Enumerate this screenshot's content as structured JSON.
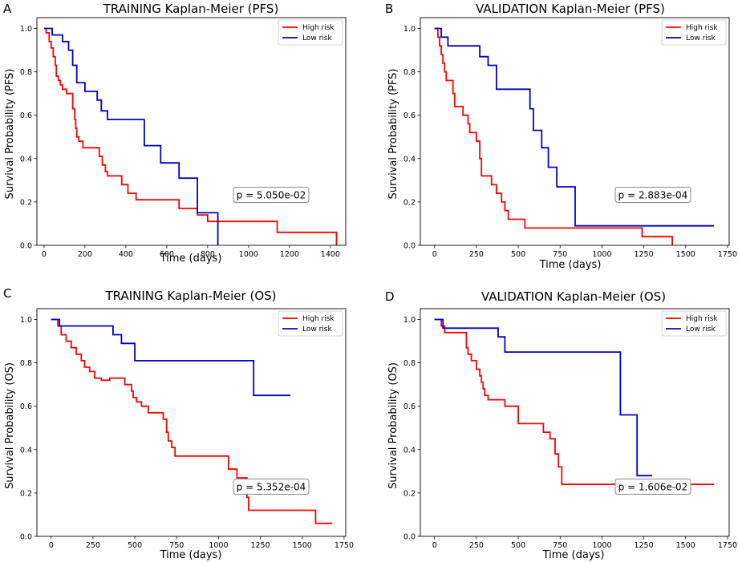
{
  "colors": {
    "high": "#ff0000",
    "low": "#0000cc"
  },
  "chart_data": [
    {
      "type": "line",
      "panel": "A",
      "title": "TRAINING Kaplan-Meier (PFS)",
      "xlabel": "Time (days)",
      "ylabel": "Survival Probability (PFS)",
      "xlim": [
        -35,
        1475
      ],
      "ylim": [
        0,
        1.05
      ],
      "xticks": [
        0,
        200,
        400,
        600,
        800,
        1000,
        1200,
        1400
      ],
      "yticks": [
        0.0,
        0.2,
        0.4,
        0.6,
        0.8,
        1.0
      ],
      "legend": {
        "position": "top-right",
        "entries": [
          "High risk",
          "Low risk"
        ]
      },
      "p_value_text": "p = 5.050e-02",
      "series": [
        {
          "name": "High risk",
          "color": "#ff0000",
          "x": [
            0,
            10,
            25,
            35,
            45,
            55,
            60,
            70,
            80,
            90,
            100,
            110,
            140,
            150,
            155,
            160,
            170,
            190,
            270,
            285,
            300,
            310,
            380,
            410,
            450,
            600,
            660,
            750,
            800,
            1140,
            1430
          ],
          "y": [
            1.0,
            0.98,
            0.94,
            0.91,
            0.87,
            0.83,
            0.78,
            0.76,
            0.74,
            0.72,
            0.72,
            0.7,
            0.63,
            0.58,
            0.54,
            0.5,
            0.48,
            0.45,
            0.41,
            0.37,
            0.34,
            0.32,
            0.28,
            0.24,
            0.21,
            0.21,
            0.17,
            0.14,
            0.11,
            0.06,
            0.0
          ]
        },
        {
          "name": "Low risk",
          "color": "#0000cc",
          "x": [
            0,
            40,
            90,
            120,
            140,
            160,
            200,
            260,
            280,
            310,
            490,
            570,
            660,
            750,
            850
          ],
          "y": [
            1.0,
            0.97,
            0.94,
            0.9,
            0.83,
            0.75,
            0.71,
            0.67,
            0.62,
            0.58,
            0.46,
            0.38,
            0.31,
            0.15,
            0.0
          ]
        }
      ]
    },
    {
      "type": "line",
      "panel": "B",
      "title": "VALIDATION Kaplan-Meier (PFS)",
      "xlabel": "Time (days)",
      "ylabel": "Survival Probability (PFS)",
      "xlim": [
        -85,
        1760
      ],
      "ylim": [
        0,
        1.05
      ],
      "xticks": [
        0,
        250,
        500,
        750,
        1000,
        1250,
        1500,
        1750
      ],
      "yticks": [
        0.0,
        0.2,
        0.4,
        0.6,
        0.8,
        1.0
      ],
      "legend": {
        "position": "top-right",
        "entries": [
          "High risk",
          "Low risk"
        ]
      },
      "p_value_text": "p = 2.883e-04",
      "series": [
        {
          "name": "High risk",
          "color": "#ff0000",
          "x": [
            0,
            20,
            30,
            40,
            50,
            60,
            70,
            110,
            120,
            170,
            200,
            210,
            250,
            270,
            280,
            340,
            370,
            400,
            420,
            440,
            540,
            1240,
            1420
          ],
          "y": [
            1.0,
            0.96,
            0.92,
            0.88,
            0.84,
            0.8,
            0.76,
            0.7,
            0.64,
            0.6,
            0.56,
            0.52,
            0.48,
            0.4,
            0.32,
            0.28,
            0.24,
            0.2,
            0.16,
            0.12,
            0.08,
            0.04,
            0.0
          ]
        },
        {
          "name": "Low risk",
          "color": "#0000cc",
          "x": [
            0,
            40,
            80,
            170,
            270,
            320,
            370,
            570,
            590,
            640,
            680,
            730,
            840,
            1670
          ],
          "y": [
            1.0,
            0.96,
            0.92,
            0.92,
            0.87,
            0.83,
            0.72,
            0.63,
            0.53,
            0.45,
            0.36,
            0.27,
            0.09,
            0.09
          ]
        }
      ]
    },
    {
      "type": "line",
      "panel": "C",
      "title": "TRAINING Kaplan-Meier (OS)",
      "xlabel": "Time (days)",
      "ylabel": "Survival Probability (OS)",
      "xlim": [
        -85,
        1760
      ],
      "ylim": [
        0,
        1.05
      ],
      "xticks": [
        0,
        250,
        500,
        750,
        1000,
        1250,
        1500,
        1750
      ],
      "yticks": [
        0.0,
        0.2,
        0.4,
        0.6,
        0.8,
        1.0
      ],
      "legend": {
        "position": "top-right",
        "entries": [
          "High risk",
          "Low risk"
        ]
      },
      "p_value_text": "p = 5.352e-04",
      "series": [
        {
          "name": "High risk",
          "color": "#ff0000",
          "x": [
            0,
            40,
            60,
            90,
            120,
            150,
            180,
            200,
            230,
            260,
            300,
            350,
            440,
            480,
            490,
            510,
            540,
            580,
            670,
            690,
            700,
            720,
            740,
            1060,
            1110,
            1170,
            1180,
            1580,
            1680
          ],
          "y": [
            1.0,
            0.97,
            0.93,
            0.9,
            0.87,
            0.84,
            0.81,
            0.78,
            0.76,
            0.73,
            0.72,
            0.73,
            0.7,
            0.67,
            0.64,
            0.62,
            0.6,
            0.57,
            0.54,
            0.48,
            0.44,
            0.41,
            0.37,
            0.31,
            0.27,
            0.18,
            0.12,
            0.06,
            0.06
          ]
        },
        {
          "name": "Low risk",
          "color": "#0000cc",
          "x": [
            0,
            50,
            370,
            420,
            500,
            1200,
            1210,
            1430
          ],
          "y": [
            1.0,
            0.97,
            0.93,
            0.89,
            0.81,
            0.81,
            0.65,
            0.65
          ]
        }
      ]
    },
    {
      "type": "line",
      "panel": "D",
      "title": "VALIDATION Kaplan-Meier (OS)",
      "xlabel": "Time (days)",
      "ylabel": "Survival Probability (OS)",
      "xlim": [
        -85,
        1760
      ],
      "ylim": [
        0,
        1.05
      ],
      "xticks": [
        0,
        250,
        500,
        750,
        1000,
        1250,
        1500,
        1750
      ],
      "yticks": [
        0.0,
        0.2,
        0.4,
        0.6,
        0.8,
        1.0
      ],
      "legend": {
        "position": "top-right",
        "entries": [
          "High risk",
          "Low risk"
        ]
      },
      "p_value_text": "p = 1.606e-02",
      "series": [
        {
          "name": "High risk",
          "color": "#ff0000",
          "x": [
            0,
            40,
            60,
            190,
            200,
            220,
            250,
            270,
            280,
            290,
            300,
            320,
            350,
            420,
            500,
            650,
            690,
            720,
            740,
            760,
            1670
          ],
          "y": [
            1.0,
            0.97,
            0.94,
            0.87,
            0.84,
            0.81,
            0.77,
            0.74,
            0.71,
            0.68,
            0.65,
            0.63,
            0.63,
            0.6,
            0.52,
            0.48,
            0.45,
            0.38,
            0.32,
            0.24,
            0.24
          ]
        },
        {
          "name": "Low risk",
          "color": "#0000cc",
          "x": [
            0,
            50,
            380,
            420,
            1110,
            1210,
            1300
          ],
          "y": [
            1.0,
            0.96,
            0.92,
            0.85,
            0.56,
            0.28,
            0.28
          ]
        }
      ]
    }
  ]
}
